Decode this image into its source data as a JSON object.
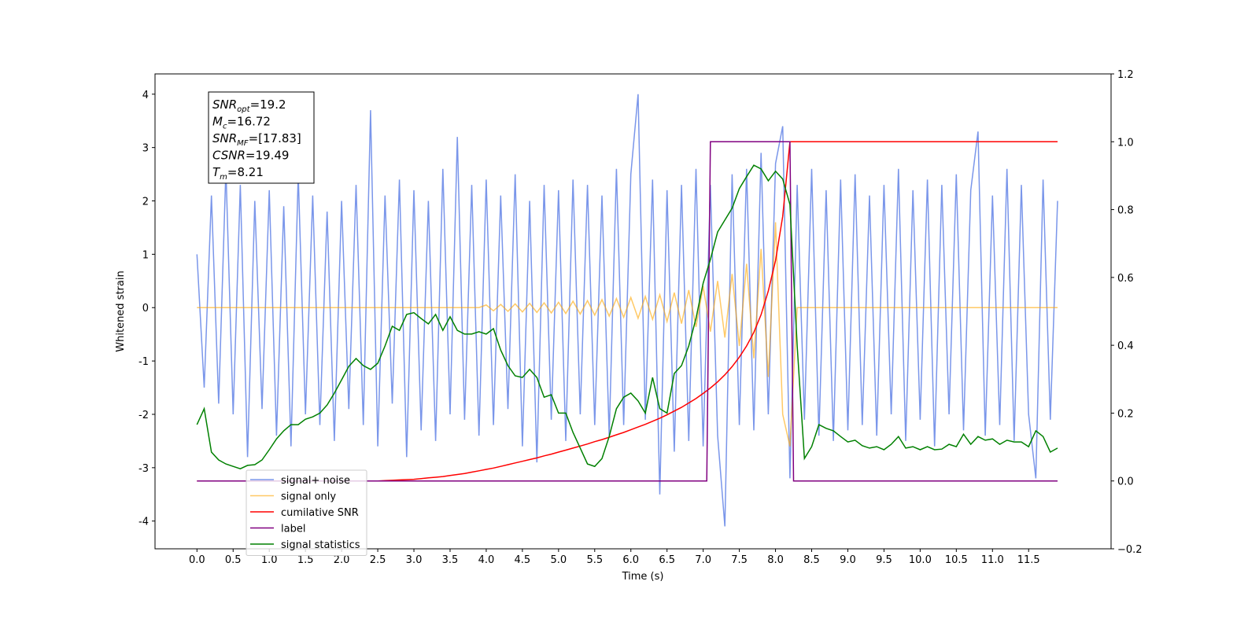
{
  "chart_data": {
    "type": "line",
    "xlabel": "Time (s)",
    "ylabel": "Whitened strain",
    "xlim": [
      -0.58,
      12.64
    ],
    "ylim": [
      -4.52,
      4.38
    ],
    "y2lim": [
      -0.2,
      1.2
    ],
    "xticks": [
      {
        "value": 0,
        "label": "0.0"
      },
      0.5,
      {
        "value": 1,
        "label": "1.0"
      },
      1.5,
      {
        "value": 2,
        "label": "2.0"
      },
      2.5,
      {
        "value": 3,
        "label": "3.0"
      },
      3.5,
      {
        "value": 4,
        "label": "4.0"
      },
      4.5,
      {
        "value": 5,
        "label": "5.0"
      },
      5.5,
      {
        "value": 6,
        "label": "6.0"
      },
      6.5,
      {
        "value": 7,
        "label": "7.0"
      },
      7.5,
      {
        "value": 8,
        "label": "8.0"
      },
      8.5,
      {
        "value": 9,
        "label": "9.0"
      },
      9.5,
      {
        "value": 10,
        "label": "10.0"
      },
      10.5,
      {
        "value": 11,
        "label": "11.0"
      },
      11.5
    ],
    "yticks": [
      -4,
      -3,
      -2,
      -1,
      0,
      1,
      2,
      3,
      4
    ],
    "y2ticks": [
      {
        "value": -0.2,
        "label": "−0.2"
      },
      {
        "value": 0,
        "label": "0.0"
      },
      0.2,
      0.4,
      0.6,
      0.8,
      {
        "value": 1,
        "label": "1.0"
      },
      1.2
    ],
    "legend": "lower left",
    "text_box": [
      {
        "symbol": "SNR",
        "subscript": "opt",
        "text": "=19.2"
      },
      {
        "symbol": "M",
        "subscript": "c",
        "text": "=16.72"
      },
      {
        "symbol": "SNR",
        "subscript": "MF",
        "text": "=[17.83]"
      },
      {
        "symbol": "CSNR",
        "subscript": "",
        "text": "=19.49"
      },
      {
        "symbol": "T",
        "subscript": "m",
        "text": "=8.21"
      }
    ],
    "x": [
      0,
      0.1,
      0.2,
      0.3,
      0.4,
      0.5,
      0.6,
      0.7,
      0.8,
      0.9,
      1,
      1.1,
      1.2,
      1.3,
      1.4,
      1.5,
      1.6,
      1.7,
      1.8,
      1.9,
      2,
      2.1,
      2.2,
      2.3,
      2.4,
      2.5,
      2.6,
      2.7,
      2.8,
      2.9,
      3,
      3.1,
      3.2,
      3.3,
      3.4,
      3.5,
      3.6,
      3.7,
      3.8,
      3.9,
      4,
      4.1,
      4.2,
      4.3,
      4.4,
      4.5,
      4.6,
      4.7,
      4.8,
      4.9,
      5,
      5.1,
      5.2,
      5.3,
      5.4,
      5.5,
      5.6,
      5.7,
      5.8,
      5.9,
      6,
      6.1,
      6.2,
      6.3,
      6.4,
      6.5,
      6.6,
      6.7,
      6.8,
      6.9,
      7,
      7.1,
      7.2,
      7.3,
      7.4,
      7.5,
      7.6,
      7.7,
      7.8,
      7.9,
      8,
      8.1,
      8.2,
      8.3,
      8.4,
      8.5,
      8.6,
      8.7,
      8.8,
      8.9,
      9,
      9.1,
      9.2,
      9.3,
      9.4,
      9.5,
      9.6,
      9.7,
      9.8,
      9.9,
      10,
      10.1,
      10.2,
      10.3,
      10.4,
      10.5,
      10.6,
      10.7,
      10.8,
      10.9,
      11,
      11.1,
      11.2,
      11.3,
      11.4,
      11.5,
      11.6,
      11.7,
      11.8,
      11.9
    ],
    "series": [
      {
        "name": "signal+ noise",
        "color": "#4169e1",
        "alpha": 0.7,
        "axis": "y",
        "values": [
          1.0,
          -1.5,
          2.1,
          -1.8,
          2.6,
          -2.0,
          2.3,
          -2.8,
          2.0,
          -1.9,
          2.2,
          -2.4,
          1.9,
          -2.6,
          2.5,
          -2.0,
          2.1,
          -2.2,
          1.8,
          -2.5,
          2.0,
          -1.9,
          2.3,
          -2.2,
          3.7,
          -2.6,
          2.1,
          -1.8,
          2.4,
          -2.8,
          2.2,
          -2.3,
          2.0,
          -2.5,
          2.6,
          -2.0,
          3.2,
          -2.1,
          2.3,
          -2.4,
          2.4,
          -2.2,
          2.1,
          -1.9,
          2.5,
          -2.6,
          2.0,
          -2.9,
          2.3,
          -2.1,
          2.2,
          -2.5,
          2.4,
          -2.0,
          2.3,
          -2.2,
          2.1,
          -2.4,
          2.6,
          -2.2,
          2.5,
          4.0,
          -2.1,
          2.4,
          -3.5,
          2.2,
          -2.7,
          2.3,
          -2.5,
          2.6,
          -2.6,
          2.3,
          -2.4,
          -4.1,
          2.5,
          -2.2,
          2.6,
          -2.3,
          2.9,
          -2.0,
          2.7,
          3.4,
          -3.2,
          2.3,
          -2.1,
          2.6,
          -2.4,
          2.2,
          -2.5,
          2.4,
          -2.3,
          2.5,
          -2.2,
          2.1,
          -2.4,
          2.3,
          -2.0,
          2.6,
          -2.5,
          2.2,
          -2.1,
          2.4,
          -2.6,
          2.3,
          -2.0,
          2.5,
          -2.3,
          2.2,
          3.3,
          -2.4,
          2.1,
          -2.2,
          2.6,
          -2.5,
          2.3,
          -2.0,
          -3.2,
          2.4,
          -2.1,
          2.0
        ]
      },
      {
        "name": "signal only",
        "color": "#ffa500",
        "alpha": 0.6,
        "axis": "y",
        "values": [
          0,
          0,
          0,
          0,
          0,
          0,
          0,
          0,
          0,
          0,
          0,
          0,
          0,
          0,
          0,
          0,
          0,
          0,
          0,
          0,
          0,
          0,
          0,
          0,
          0,
          0,
          0,
          0,
          0,
          0,
          0,
          0,
          0,
          0,
          0,
          0,
          0,
          0,
          0,
          0,
          0.05,
          -0.06,
          0.06,
          -0.07,
          0.07,
          -0.08,
          0.08,
          -0.09,
          0.09,
          -0.1,
          0.1,
          -0.11,
          0.12,
          -0.12,
          0.13,
          -0.14,
          0.15,
          -0.16,
          0.17,
          -0.18,
          0.19,
          -0.2,
          0.21,
          -0.22,
          0.24,
          -0.26,
          0.28,
          -0.3,
          0.33,
          -0.36,
          0.4,
          -0.45,
          0.5,
          -0.56,
          0.63,
          -0.72,
          0.82,
          -0.95,
          1.1,
          -1.3,
          1.6,
          -2.0,
          -2.6,
          0,
          0,
          0,
          0,
          0,
          0,
          0,
          0,
          0,
          0,
          0,
          0,
          0,
          0,
          0,
          0,
          0,
          0,
          0,
          0,
          0,
          0,
          0,
          0,
          0,
          0,
          0,
          0,
          0,
          0,
          0,
          0,
          0,
          0,
          0,
          0,
          0
        ]
      },
      {
        "name": "cumilative SNR",
        "color": "#ff0000",
        "alpha": 1,
        "axis": "y2",
        "values": [
          0,
          0,
          0,
          0,
          0,
          0,
          0,
          0,
          0,
          0,
          0,
          0,
          0,
          0,
          0,
          0,
          0,
          0,
          0,
          0,
          0,
          0,
          0,
          0,
          0,
          0,
          0.001,
          0.002,
          0.003,
          0.004,
          0.005,
          0.007,
          0.009,
          0.011,
          0.013,
          0.016,
          0.019,
          0.022,
          0.026,
          0.03,
          0.034,
          0.038,
          0.043,
          0.048,
          0.053,
          0.058,
          0.063,
          0.068,
          0.074,
          0.079,
          0.085,
          0.091,
          0.097,
          0.103,
          0.109,
          0.116,
          0.122,
          0.129,
          0.136,
          0.143,
          0.151,
          0.159,
          0.167,
          0.176,
          0.185,
          0.195,
          0.206,
          0.217,
          0.23,
          0.243,
          0.258,
          0.274,
          0.292,
          0.313,
          0.337,
          0.365,
          0.398,
          0.438,
          0.49,
          0.56,
          0.65,
          0.78,
          1.0,
          1.0,
          1.0,
          1.0,
          1.0,
          1.0,
          1.0,
          1.0,
          1.0,
          1.0,
          1.0,
          1.0,
          1.0,
          1.0,
          1.0,
          1.0,
          1.0,
          1.0,
          1.0,
          1.0,
          1.0,
          1.0,
          1.0,
          1.0,
          1.0,
          1.0,
          1.0,
          1.0,
          1.0,
          1.0,
          1.0,
          1.0,
          1.0,
          1.0,
          1.0,
          1.0,
          1.0,
          1.0
        ]
      },
      {
        "name": "label",
        "color": "#800080",
        "alpha": 1,
        "axis": "y2",
        "x": [
          0,
          7.05,
          7.1,
          8.2,
          8.25,
          11.9
        ],
        "values": [
          0,
          0,
          1,
          1,
          0,
          0
        ]
      },
      {
        "name": "signal statistics",
        "color": "#008000",
        "alpha": 1,
        "axis": "y2",
        "values": [
          0.166,
          0.213,
          0.085,
          0.062,
          0.05,
          0.043,
          0.036,
          0.046,
          0.048,
          0.062,
          0.092,
          0.124,
          0.148,
          0.166,
          0.166,
          0.182,
          0.189,
          0.2,
          0.224,
          0.259,
          0.298,
          0.338,
          0.361,
          0.34,
          0.329,
          0.347,
          0.398,
          0.456,
          0.444,
          0.491,
          0.496,
          0.479,
          0.463,
          0.491,
          0.444,
          0.484,
          0.444,
          0.433,
          0.433,
          0.44,
          0.433,
          0.449,
          0.386,
          0.34,
          0.31,
          0.305,
          0.329,
          0.305,
          0.247,
          0.254,
          0.2,
          0.2,
          0.143,
          0.097,
          0.05,
          0.043,
          0.066,
          0.131,
          0.213,
          0.247,
          0.259,
          0.236,
          0.2,
          0.305,
          0.213,
          0.2,
          0.317,
          0.34,
          0.398,
          0.479,
          0.583,
          0.653,
          0.734,
          0.769,
          0.804,
          0.862,
          0.897,
          0.931,
          0.92,
          0.885,
          0.913,
          0.89,
          0.815,
          0.398,
          0.066,
          0.101,
          0.166,
          0.155,
          0.148,
          0.131,
          0.115,
          0.12,
          0.104,
          0.097,
          0.101,
          0.092,
          0.108,
          0.131,
          0.097,
          0.101,
          0.092,
          0.101,
          0.092,
          0.094,
          0.108,
          0.101,
          0.138,
          0.108,
          0.131,
          0.12,
          0.124,
          0.108,
          0.12,
          0.115,
          0.115,
          0.101,
          0.148,
          0.131,
          0.085,
          0.097
        ]
      }
    ]
  }
}
